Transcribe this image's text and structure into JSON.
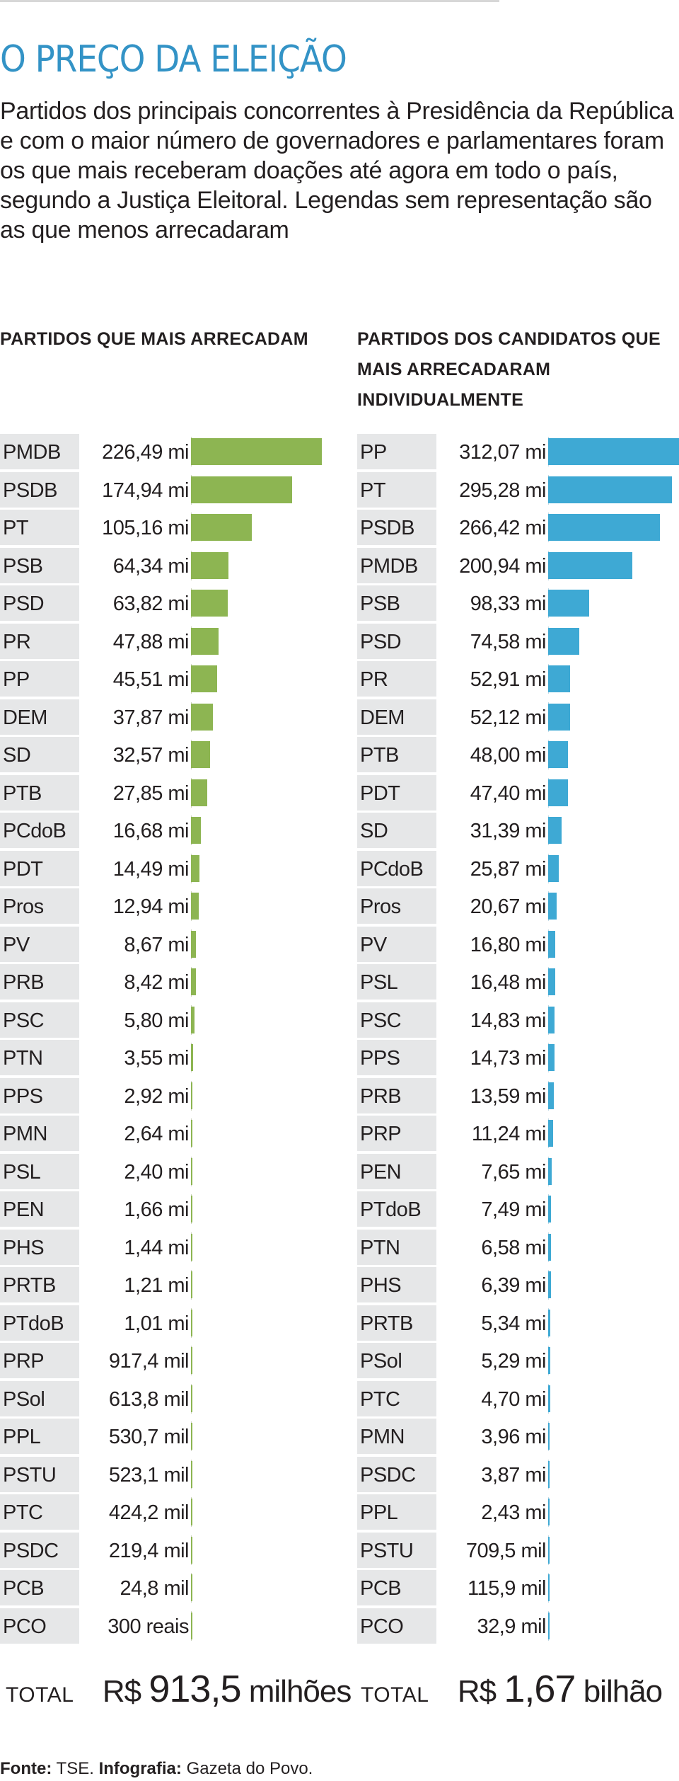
{
  "headline": "O PREÇO DA ELEIÇÃO",
  "intro": "Partidos dos principais concorrentes à Presidência da República e com o maior número de governadores e parlamentares foram os que mais receberam doações até agora em todo o país, segundo a Justiça Eleitoral. Legendas sem representação são as que menos arrecadaram",
  "chart_data": [
    {
      "type": "bar",
      "title": "PARTIDOS QUE MAIS ARRECADAM",
      "unit": "R$",
      "bar_color": "#8db552",
      "categories": [
        "PMDB",
        "PSDB",
        "PT",
        "PSB",
        "PSD",
        "PR",
        "PP",
        "DEM",
        "SD",
        "PTB",
        "PCdoB",
        "PDT",
        "Pros",
        "PV",
        "PRB",
        "PSC",
        "PTN",
        "PPS",
        "PMN",
        "PSL",
        "PEN",
        "PHS",
        "PRTB",
        "PTdoB",
        "PRP",
        "PSol",
        "PPL",
        "PSTU",
        "PTC",
        "PSDC",
        "PCB",
        "PCO"
      ],
      "labels": [
        "226,49 mi",
        "174,94 mi",
        "105,16 mi",
        "64,34 mi",
        "63,82 mi",
        "47,88 mi",
        "45,51 mi",
        "37,87 mi",
        "32,57 mi",
        "27,85 mi",
        "16,68 mi",
        "14,49 mi",
        "12,94 mi",
        "8,67 mi",
        "8,42 mi",
        "5,80 mi",
        "3,55 mi",
        "2,92 mi",
        "2,64 mi",
        "2,40 mi",
        "1,66 mi",
        "1,44 mi",
        "1,21 mi",
        "1,01 mi",
        "917,4 mil",
        "613,8 mil",
        "530,7 mil",
        "523,1 mil",
        "424,2 mil",
        "219,4 mil",
        "24,8 mil",
        "300 reais"
      ],
      "values": [
        226490000,
        174940000,
        105160000,
        64340000,
        63820000,
        47880000,
        45510000,
        37870000,
        32570000,
        27850000,
        16680000,
        14490000,
        12940000,
        8670000,
        8420000,
        5800000,
        3550000,
        2920000,
        2640000,
        2400000,
        1660000,
        1440000,
        1210000,
        1010000,
        917400,
        613800,
        530700,
        523100,
        424200,
        219400,
        24800,
        300
      ],
      "total_label": "TOTAL",
      "total_prefix": "R$",
      "total_number": "913,5",
      "total_unit": "milhões"
    },
    {
      "type": "bar",
      "title": "PARTIDOS DOS CANDIDATOS QUE MAIS ARRECADARAM INDIVIDUALMENTE",
      "unit": "R$",
      "bar_color": "#3ea9d4",
      "categories": [
        "PP",
        "PT",
        "PSDB",
        "PMDB",
        "PSB",
        "PSD",
        "PR",
        "DEM",
        "PTB",
        "PDT",
        "SD",
        "PCdoB",
        "Pros",
        "PV",
        "PSL",
        "PSC",
        "PPS",
        "PRB",
        "PRP",
        "PEN",
        "PTdoB",
        "PTN",
        "PHS",
        "PRTB",
        "PSol",
        "PTC",
        "PMN",
        "PSDC",
        "PPL",
        "PSTU",
        "PCB",
        "PCO"
      ],
      "labels": [
        "312,07 mi",
        "295,28 mi",
        "266,42 mi",
        "200,94 mi",
        "98,33 mi",
        "74,58 mi",
        "52,91 mi",
        "52,12 mi",
        "48,00 mi",
        "47,40 mi",
        "31,39 mi",
        "25,87 mi",
        "20,67 mi",
        "16,80 mi",
        "16,48 mi",
        "14,83 mi",
        "14,73 mi",
        "13,59 mi",
        "11,24 mi",
        "7,65 mi",
        "7,49 mi",
        "6,58 mi",
        "6,39 mi",
        "5,34 mi",
        "5,29 mi",
        "4,70 mi",
        "3,96 mi",
        "3,87 mi",
        "2,43 mi",
        "709,5 mil",
        "115,9 mil",
        "32,9 mil"
      ],
      "values": [
        312070000,
        295280000,
        266420000,
        200940000,
        98330000,
        74580000,
        52910000,
        52120000,
        48000000,
        47400000,
        31390000,
        25870000,
        20670000,
        16800000,
        16480000,
        14830000,
        14730000,
        13590000,
        11240000,
        7650000,
        7490000,
        6580000,
        6390000,
        5340000,
        5290000,
        4700000,
        3960000,
        3870000,
        2430000,
        709500,
        115900,
        32900
      ],
      "total_label": "TOTAL",
      "total_prefix": "R$",
      "total_number": "1,67",
      "total_unit": "bilhão"
    }
  ],
  "source": {
    "source_label": "Fonte:",
    "source_value": "TSE.",
    "credit_label": "Infografia:",
    "credit_value": "Gazeta do Povo."
  }
}
